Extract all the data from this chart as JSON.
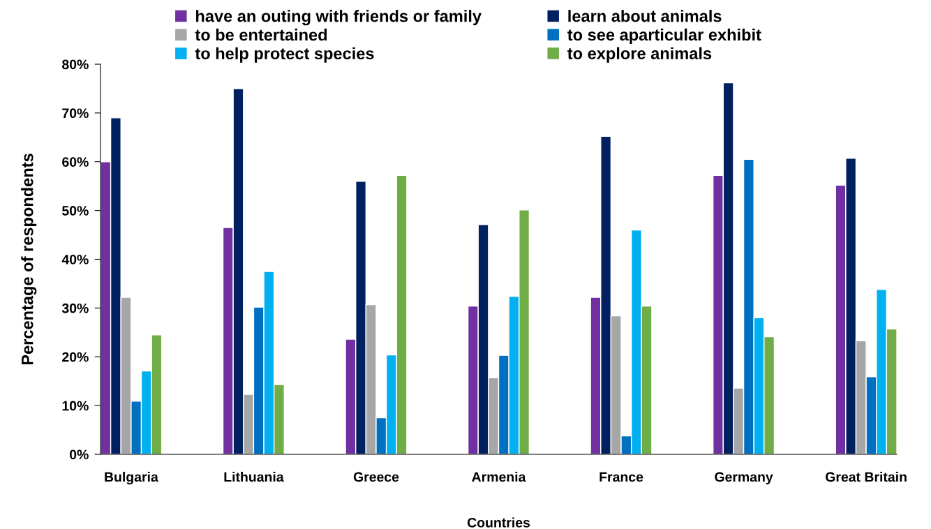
{
  "chart_data": {
    "type": "bar",
    "categories": [
      "Bulgaria",
      "Lithuania",
      "Greece",
      "Armenia",
      "France",
      "Germany",
      "Great Britain"
    ],
    "xlabel": "Countries",
    "ylabel": "Percentage of respondents",
    "ylim": [
      0,
      80
    ],
    "yticks": [
      {
        "value": 0,
        "label": "0%"
      },
      {
        "value": 10,
        "label": "10%"
      },
      {
        "value": 20,
        "label": "20%"
      },
      {
        "value": 30,
        "label": "30%"
      },
      {
        "value": 40,
        "label": "40%"
      },
      {
        "value": 50,
        "label": "50%"
      },
      {
        "value": 60,
        "label": "60%"
      },
      {
        "value": 70,
        "label": "70%"
      },
      {
        "value": 80,
        "label": "80%"
      }
    ],
    "series": [
      {
        "name": "have an outing with friends or family",
        "color": "#7030a0",
        "values": [
          60,
          46.5,
          23.6,
          30.4,
          32.2,
          57.2,
          55.2
        ]
      },
      {
        "name": "learn about animals",
        "color": "#002060",
        "values": [
          69,
          75,
          56,
          47.1,
          65.2,
          76.2,
          60.7
        ]
      },
      {
        "name": "to be entertained",
        "color": "#a6a6a6",
        "values": [
          32.2,
          12.3,
          30.7,
          15.7,
          28.4,
          13.6,
          23.3
        ]
      },
      {
        "name": "to see aparticular exhibit",
        "color": "#0070c0",
        "values": [
          10.9,
          30.2,
          7.5,
          20.3,
          3.8,
          60.5,
          15.9
        ]
      },
      {
        "name": "to help protect species",
        "color": "#00b0f0",
        "values": [
          17.1,
          37.5,
          20.4,
          32.4,
          46,
          28,
          33.8
        ]
      },
      {
        "name": "to explore animals",
        "color": "#70ad47",
        "values": [
          24.5,
          14.3,
          57.2,
          50.1,
          30.4,
          24.1,
          25.7
        ]
      }
    ],
    "grid": false,
    "legend": "top"
  }
}
